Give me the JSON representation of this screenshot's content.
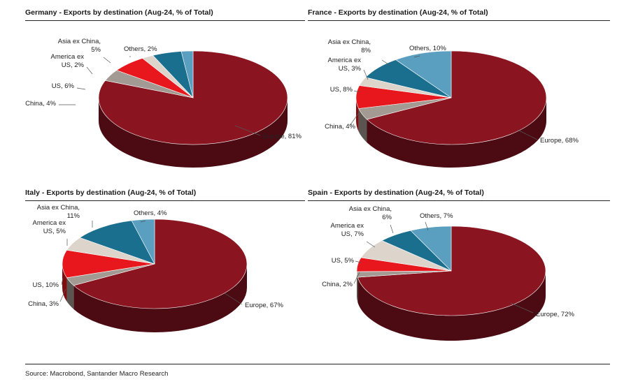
{
  "source": "Source: Macrobond, Santander Macro Research",
  "colors": {
    "Europe": "#8a1420",
    "China": "#a39a93",
    "US": "#e8171d",
    "America ex US": "#ddd4cb",
    "Asia ex China": "#1b6f8e",
    "Others": "#5b9fc0"
  },
  "chart_data": [
    {
      "type": "pie",
      "title": "Germany - Exports by destination (Aug-24, % of Total)",
      "slices": [
        {
          "name": "Europe",
          "value": 81,
          "label": [
            "Europe, 81%"
          ]
        },
        {
          "name": "China",
          "value": 4,
          "label": [
            "China, 4%"
          ]
        },
        {
          "name": "US",
          "value": 6,
          "label": [
            "US, 6%"
          ]
        },
        {
          "name": "America ex US",
          "value": 2,
          "label": [
            "America ex",
            "US, 2%"
          ]
        },
        {
          "name": "Asia ex China",
          "value": 5,
          "label": [
            "Asia ex China,",
            "5%"
          ]
        },
        {
          "name": "Others",
          "value": 2,
          "label": [
            "Others, 2%"
          ]
        }
      ]
    },
    {
      "type": "pie",
      "title": "France - Exports by destination (Aug-24, % of Total)",
      "slices": [
        {
          "name": "Europe",
          "value": 68,
          "label": [
            "Europe, 68%"
          ]
        },
        {
          "name": "China",
          "value": 4,
          "label": [
            "China, 4%"
          ]
        },
        {
          "name": "US",
          "value": 8,
          "label": [
            "US, 8%"
          ]
        },
        {
          "name": "America ex US",
          "value": 3,
          "label": [
            "America ex",
            "US, 3%"
          ]
        },
        {
          "name": "Asia ex China",
          "value": 8,
          "label": [
            "Asia ex China,",
            "8%"
          ]
        },
        {
          "name": "Others",
          "value": 10,
          "label": [
            "Others, 10%"
          ]
        }
      ]
    },
    {
      "type": "pie",
      "title": "Italy - Exports by destination (Aug-24, % of Total)",
      "slices": [
        {
          "name": "Europe",
          "value": 67,
          "label": [
            "Europe, 67%"
          ]
        },
        {
          "name": "China",
          "value": 3,
          "label": [
            "China, 3%"
          ]
        },
        {
          "name": "US",
          "value": 10,
          "label": [
            "US, 10%"
          ]
        },
        {
          "name": "America ex US",
          "value": 5,
          "label": [
            "America ex",
            "US, 5%"
          ]
        },
        {
          "name": "Asia ex China",
          "value": 11,
          "label": [
            "Asia ex China,",
            "11%"
          ]
        },
        {
          "name": "Others",
          "value": 4,
          "label": [
            "Others, 4%"
          ]
        }
      ]
    },
    {
      "type": "pie",
      "title": "Spain - Exports by destination (Aug-24, % of Total)",
      "slices": [
        {
          "name": "Europe",
          "value": 72,
          "label": [
            "Europe, 72%"
          ]
        },
        {
          "name": "China",
          "value": 2,
          "label": [
            "China, 2%"
          ]
        },
        {
          "name": "US",
          "value": 5,
          "label": [
            "US, 5%"
          ]
        },
        {
          "name": "America ex US",
          "value": 7,
          "label": [
            "America ex",
            "US, 7%"
          ]
        },
        {
          "name": "Asia ex China",
          "value": 6,
          "label": [
            "Asia ex China,",
            "6%"
          ]
        },
        {
          "name": "Others",
          "value": 7,
          "label": [
            "Others, 7%"
          ]
        }
      ]
    }
  ]
}
